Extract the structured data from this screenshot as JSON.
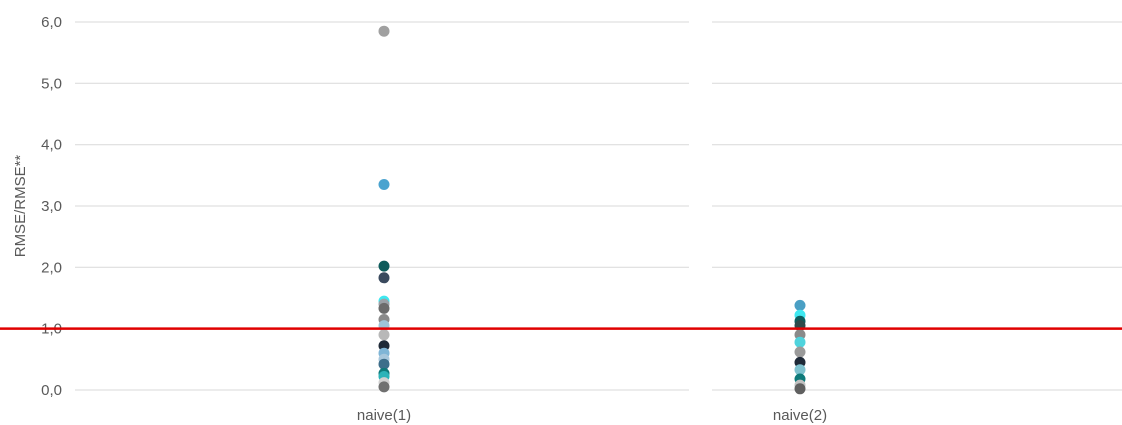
{
  "chart_data": [
    {
      "type": "scatter",
      "category": "naive(1)",
      "ylabel": "RMSE/RMSE**",
      "ylim": [
        0,
        6
      ],
      "yticks": [
        "0,0",
        "1,0",
        "2,0",
        "3,0",
        "4,0",
        "5,0",
        "6,0"
      ],
      "grid": true,
      "reference_line": {
        "y": 1.0,
        "color": "#e00000"
      },
      "points": [
        {
          "y": 5.85,
          "color": "#a0a0a0"
        },
        {
          "y": 3.35,
          "color": "#4aa3cf"
        },
        {
          "y": 2.02,
          "color": "#0e5c5c"
        },
        {
          "y": 1.83,
          "color": "#3a4a5e"
        },
        {
          "y": 1.45,
          "color": "#3ee8f0"
        },
        {
          "y": 1.4,
          "color": "#9aa0a6"
        },
        {
          "y": 1.33,
          "color": "#6b6b6b"
        },
        {
          "y": 1.15,
          "color": "#8a8a8a"
        },
        {
          "y": 1.05,
          "color": "#9ec5d8"
        },
        {
          "y": 0.9,
          "color": "#b8b8b8"
        },
        {
          "y": 0.72,
          "color": "#1f2a38"
        },
        {
          "y": 0.6,
          "color": "#7fb5d6"
        },
        {
          "y": 0.5,
          "color": "#a7c7dc"
        },
        {
          "y": 0.42,
          "color": "#3d6e8a"
        },
        {
          "y": 0.27,
          "color": "#0e7a7a"
        },
        {
          "y": 0.22,
          "color": "#2bb3b8"
        },
        {
          "y": 0.12,
          "color": "#d0d0d0"
        },
        {
          "y": 0.05,
          "color": "#707070"
        }
      ]
    },
    {
      "type": "scatter",
      "category": "naive(2)",
      "ylabel": "",
      "ylim": [
        0,
        6
      ],
      "grid": true,
      "reference_line": {
        "y": 1.0,
        "color": "#e00000"
      },
      "points": [
        {
          "y": 1.38,
          "color": "#4a9fc4"
        },
        {
          "y": 1.22,
          "color": "#3ee8f0"
        },
        {
          "y": 1.12,
          "color": "#0e5c5c"
        },
        {
          "y": 1.05,
          "color": "#2f4a4a"
        },
        {
          "y": 0.9,
          "color": "#8a8a8a"
        },
        {
          "y": 0.78,
          "color": "#4fd3dd"
        },
        {
          "y": 0.62,
          "color": "#9a9a9a"
        },
        {
          "y": 0.45,
          "color": "#1f2a38"
        },
        {
          "y": 0.33,
          "color": "#7ec2cf"
        },
        {
          "y": 0.18,
          "color": "#0e7a7a"
        },
        {
          "y": 0.08,
          "color": "#c0c0c0"
        },
        {
          "y": 0.02,
          "color": "#606060"
        }
      ]
    }
  ]
}
